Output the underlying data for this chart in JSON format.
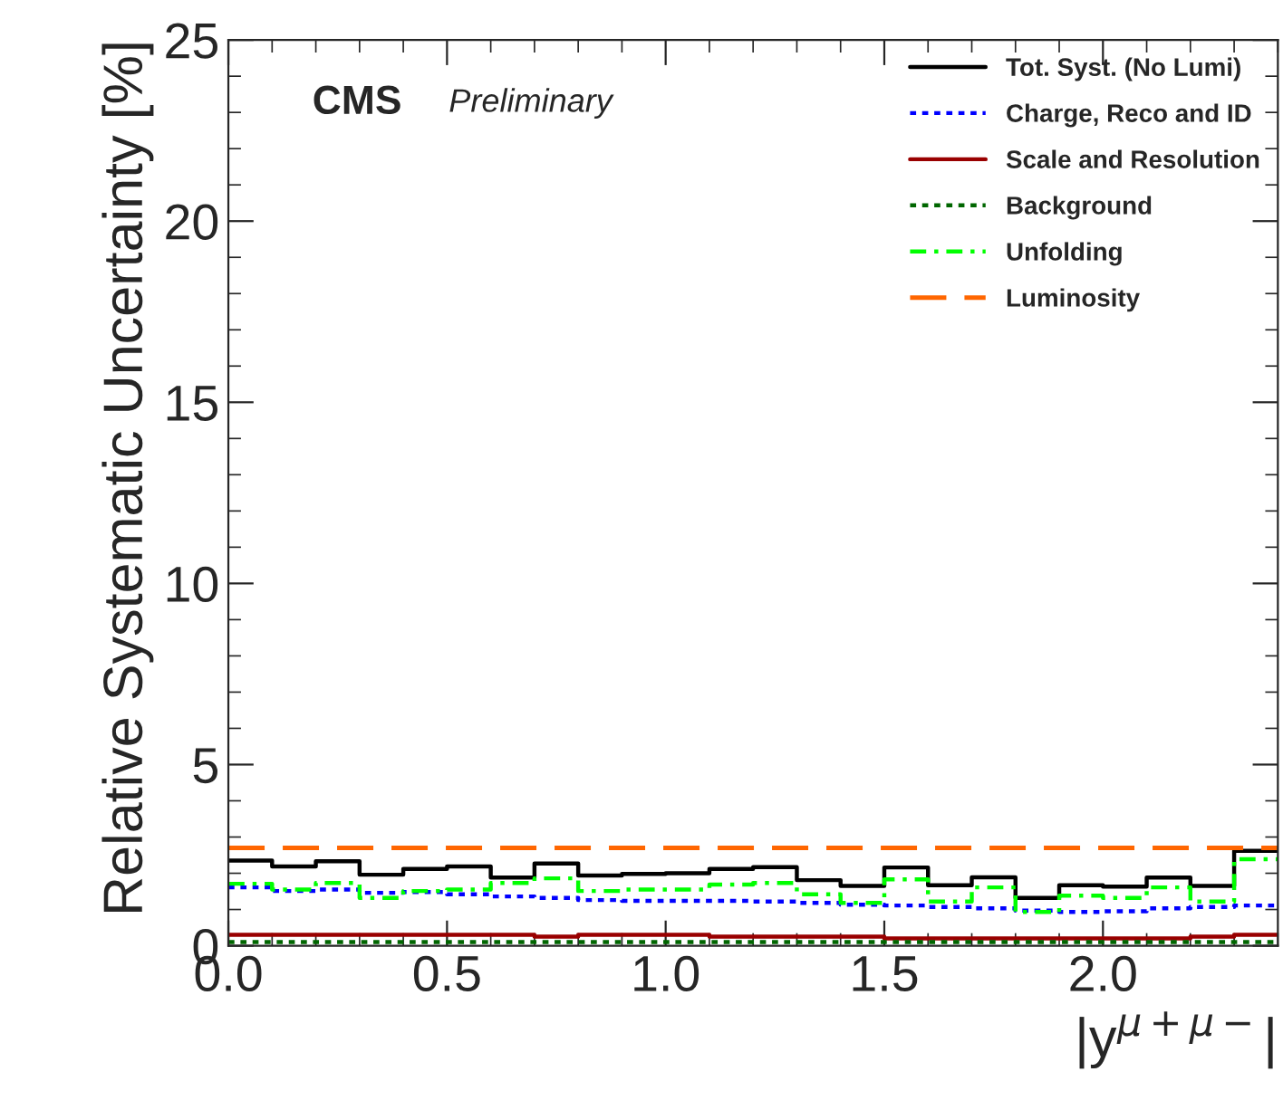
{
  "chart_data": {
    "type": "step",
    "xlabel": "|y$^{μ+μ−}$|",
    "ylabel": "Relative Systematic Uncertainty [%]",
    "annotations": [
      "CMS",
      "Preliminary"
    ],
    "x": [
      0.0,
      0.1,
      0.2,
      0.3,
      0.4,
      0.5,
      0.6,
      0.7,
      0.8,
      0.9,
      1.0,
      1.1,
      1.2,
      1.3,
      1.4,
      1.5,
      1.6,
      1.7,
      1.8,
      1.9,
      2.0,
      2.1,
      2.2,
      2.3,
      2.4
    ],
    "series": [
      {
        "name": "Tot. Syst. (No Lumi)",
        "color": "#000000",
        "line_style": "solid",
        "values": [
          2.35,
          2.19,
          2.33,
          1.96,
          2.12,
          2.19,
          1.88,
          2.27,
          1.94,
          1.98,
          2.0,
          2.12,
          2.17,
          1.81,
          1.65,
          2.16,
          1.67,
          1.89,
          1.32,
          1.67,
          1.63,
          1.88,
          1.65,
          2.62,
          2.62
        ]
      },
      {
        "name": "Charge, Reco and ID",
        "color": "#0000ff",
        "line_style": "dotted",
        "values": [
          1.61,
          1.51,
          1.55,
          1.46,
          1.48,
          1.42,
          1.36,
          1.32,
          1.26,
          1.24,
          1.24,
          1.24,
          1.22,
          1.18,
          1.13,
          1.11,
          1.07,
          1.03,
          0.97,
          0.93,
          0.95,
          1.03,
          1.07,
          1.11,
          1.11
        ]
      },
      {
        "name": "Scale and Resolution",
        "color": "#990000",
        "line_style": "solid",
        "values": [
          0.3,
          0.3,
          0.3,
          0.3,
          0.3,
          0.3,
          0.3,
          0.25,
          0.3,
          0.3,
          0.3,
          0.25,
          0.25,
          0.25,
          0.25,
          0.2,
          0.2,
          0.2,
          0.2,
          0.2,
          0.2,
          0.2,
          0.25,
          0.3,
          0.3
        ]
      },
      {
        "name": "Background",
        "color": "#006600",
        "line_style": "dotted",
        "values": [
          0.1,
          0.1,
          0.1,
          0.1,
          0.1,
          0.1,
          0.1,
          0.1,
          0.1,
          0.1,
          0.1,
          0.1,
          0.1,
          0.1,
          0.1,
          0.1,
          0.1,
          0.1,
          0.1,
          0.1,
          0.1,
          0.1,
          0.1,
          0.1,
          0.1
        ]
      },
      {
        "name": "Unfolding",
        "color": "#00ff00",
        "line_style": "dashdot",
        "values": [
          1.71,
          1.55,
          1.73,
          1.32,
          1.51,
          1.55,
          1.73,
          1.86,
          1.51,
          1.55,
          1.55,
          1.69,
          1.73,
          1.42,
          1.18,
          1.83,
          1.22,
          1.61,
          0.93,
          1.38,
          1.32,
          1.61,
          1.22,
          2.39,
          2.39
        ]
      }
    ],
    "ref_lines": [
      {
        "axis": "y",
        "value": 2.7,
        "label": "Luminosity",
        "color": "#ff6600",
        "line_style": "dashed"
      }
    ],
    "xlim": [
      0,
      2.4
    ],
    "xticks": [
      {
        "value": 0,
        "label": "0.0"
      },
      {
        "value": 0.5,
        "label": "0.5"
      },
      {
        "value": 1,
        "label": "1.0"
      },
      {
        "value": 1.5,
        "label": "1.5"
      },
      {
        "value": 2,
        "label": "2.0"
      }
    ],
    "ylim": [
      0,
      25
    ],
    "yticks": [
      0,
      5,
      10,
      15,
      20,
      25
    ],
    "grid": false,
    "legend": "top right"
  }
}
